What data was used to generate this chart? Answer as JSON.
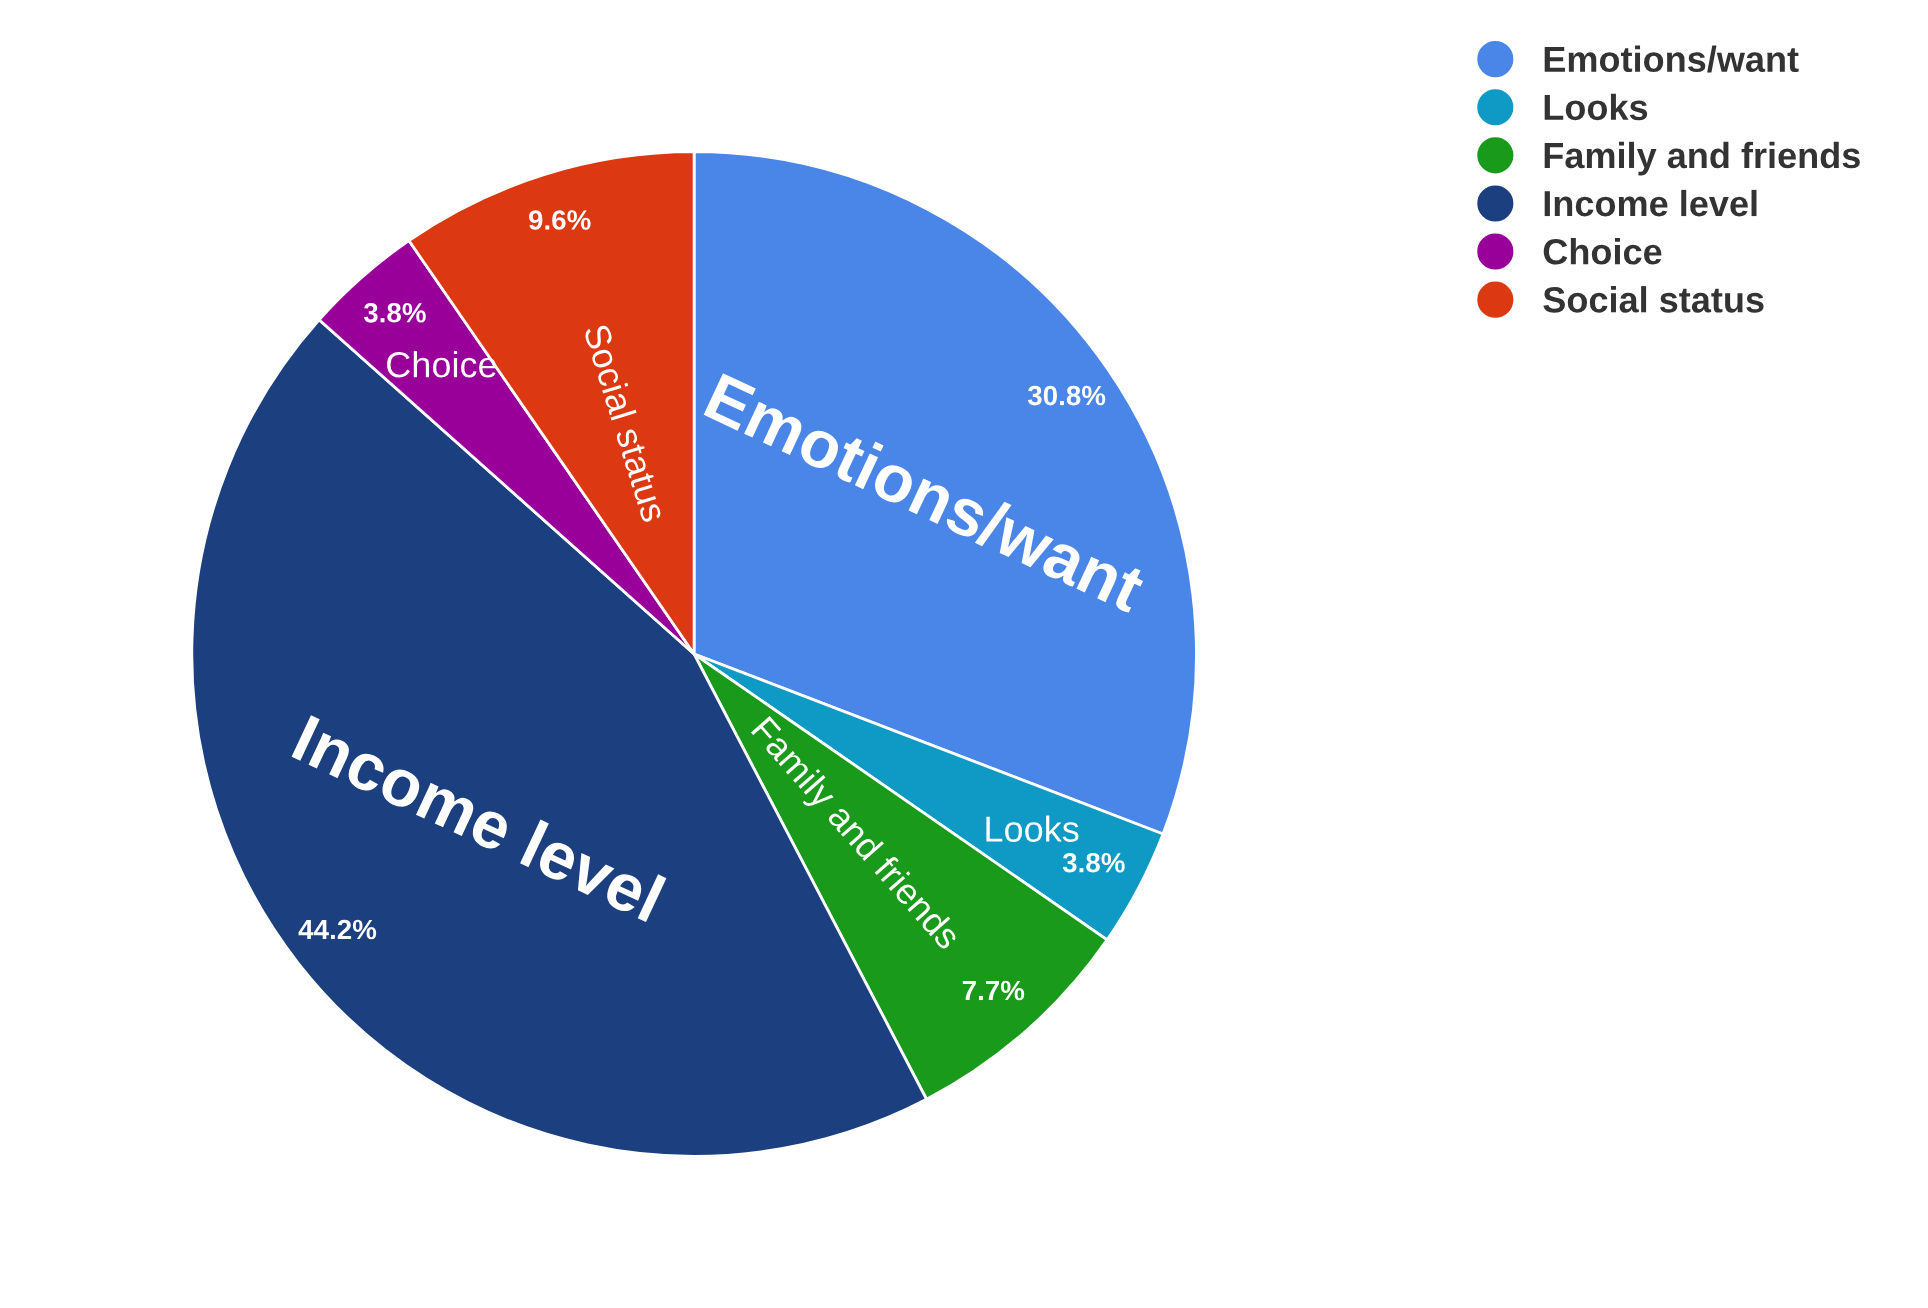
{
  "chart_data": {
    "type": "pie",
    "categories": [
      "Emotions/want",
      "Looks",
      "Family and friends",
      "Income level",
      "Choice",
      "Social status"
    ],
    "values": [
      30.8,
      3.8,
      7.7,
      44.2,
      3.8,
      9.6
    ],
    "colors": [
      "#4a86e8",
      "#0e9ac4",
      "#1a9a1a",
      "#1c3f7f",
      "#990099",
      "#dc3912"
    ],
    "value_labels": [
      "30.8%",
      "3.8%",
      "7.7%",
      "44.2%",
      "3.8%",
      "9.6%"
    ],
    "legend": "top right"
  }
}
